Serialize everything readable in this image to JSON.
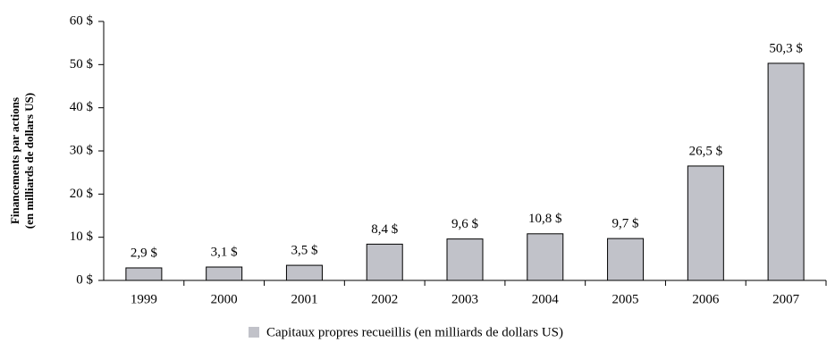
{
  "chart_data": {
    "type": "bar",
    "ylabel": [
      "Financements par actions",
      "(en milliards de dollars US)"
    ],
    "categories": [
      "1999",
      "2000",
      "2001",
      "2002",
      "2003",
      "2004",
      "2005",
      "2006",
      "2007"
    ],
    "series": [
      {
        "name": "Capitaux propres recueillis (en milliards de dollars US)",
        "color": "#c1c2c9",
        "values": [
          2.9,
          3.1,
          3.5,
          8.4,
          9.6,
          10.8,
          9.7,
          26.5,
          50.3
        ],
        "value_labels": [
          "2,9 $",
          "3,1 $",
          "3,5 $",
          "8,4 $",
          "9,6 $",
          "10,8 $",
          "9,7 $",
          "26,5 $",
          "50,3 $"
        ]
      }
    ],
    "ylim": [
      0,
      60
    ],
    "yticks": [
      {
        "value": 0,
        "label": "0 $"
      },
      {
        "value": 10,
        "label": "10 $"
      },
      {
        "value": 20,
        "label": "20 $"
      },
      {
        "value": 30,
        "label": "30 $"
      },
      {
        "value": 40,
        "label": "40 $"
      },
      {
        "value": 50,
        "label": "50 $"
      },
      {
        "value": 60,
        "label": "60 $"
      }
    ],
    "grid": false,
    "legend": "bottom"
  }
}
